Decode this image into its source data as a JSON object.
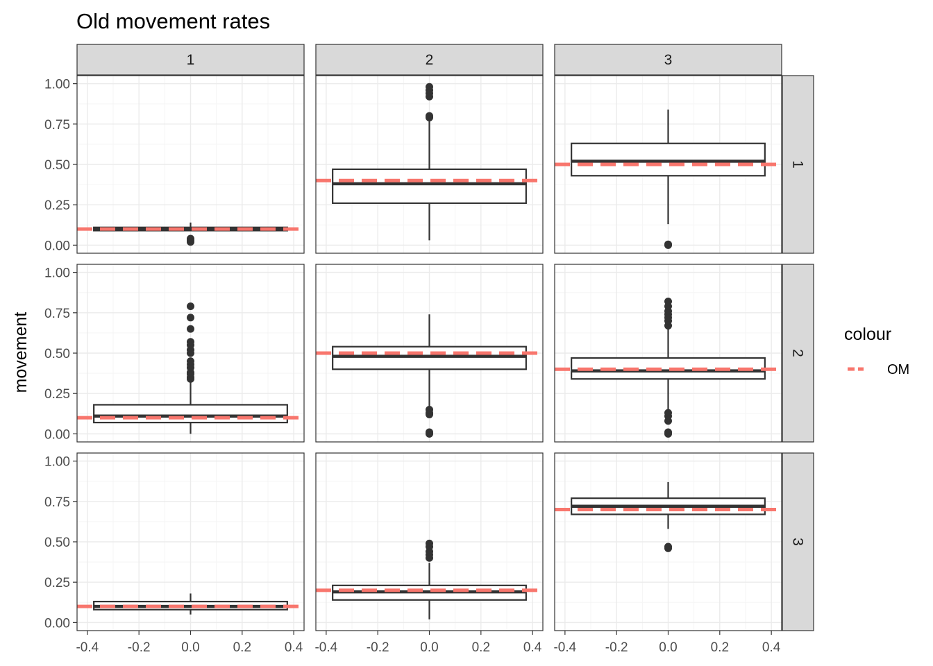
{
  "chart_data": {
    "type": "boxplot",
    "title": "Old movement rates",
    "ylabel": "movement",
    "xlabel": "",
    "facet_cols": [
      "1",
      "2",
      "3"
    ],
    "facet_rows": [
      "1",
      "2",
      "3"
    ],
    "xlim": [
      -0.4,
      0.4
    ],
    "ylim": [
      0,
      1
    ],
    "x_ticks": [
      "-0.4",
      "-0.2",
      "0.0",
      "0.2",
      "0.4"
    ],
    "x_tick_values": [
      -0.4,
      -0.2,
      0.0,
      0.2,
      0.4
    ],
    "y_ticks": [
      "0.00",
      "0.25",
      "0.50",
      "0.75",
      "1.00"
    ],
    "y_tick_values": [
      0,
      0.25,
      0.5,
      0.75,
      1.0
    ],
    "grid": true,
    "legend": {
      "title": "colour",
      "position": "right",
      "entries": [
        {
          "label": "OM",
          "color": "#F8766D",
          "linetype": "dashed"
        }
      ]
    },
    "colors": {
      "box": "#333333",
      "om_line": "#F8766D",
      "strip_fill": "#D9D9D9",
      "grid_major": "#EBEBEB",
      "grid_minor": "#F5F5F5"
    },
    "panels": [
      {
        "row": "1",
        "col": "1",
        "box": {
          "whisker_low": 0.09,
          "q1": 0.09,
          "median": 0.1,
          "q3": 0.11,
          "whisker_high": 0.14,
          "xmin": -0.375,
          "xmax": 0.375
        },
        "outliers": [
          0.02,
          0.03,
          0.04
        ],
        "om": 0.1
      },
      {
        "row": "1",
        "col": "2",
        "box": {
          "whisker_low": 0.03,
          "q1": 0.26,
          "median": 0.38,
          "q3": 0.47,
          "whisker_high": 0.77,
          "xmin": -0.375,
          "xmax": 0.375
        },
        "outliers": [
          0.79,
          0.8,
          0.92,
          0.94,
          0.96,
          0.98
        ],
        "om": 0.4
      },
      {
        "row": "1",
        "col": "3",
        "box": {
          "whisker_low": 0.13,
          "q1": 0.43,
          "median": 0.52,
          "q3": 0.63,
          "whisker_high": 0.84,
          "xmin": -0.375,
          "xmax": 0.375
        },
        "outliers": [
          0.0,
          0.005
        ],
        "om": 0.5
      },
      {
        "row": "2",
        "col": "1",
        "box": {
          "whisker_low": 0.0,
          "q1": 0.07,
          "median": 0.11,
          "q3": 0.18,
          "whisker_high": 0.33,
          "xmin": -0.375,
          "xmax": 0.375
        },
        "outliers": [
          0.34,
          0.35,
          0.37,
          0.38,
          0.41,
          0.43,
          0.45,
          0.5,
          0.52,
          0.55,
          0.57,
          0.65,
          0.72,
          0.79
        ],
        "om": 0.1
      },
      {
        "row": "2",
        "col": "2",
        "box": {
          "whisker_low": 0.17,
          "q1": 0.4,
          "median": 0.48,
          "q3": 0.54,
          "whisker_high": 0.74,
          "xmin": -0.375,
          "xmax": 0.375
        },
        "outliers": [
          0.0,
          0.01,
          0.12,
          0.13,
          0.15
        ],
        "om": 0.5
      },
      {
        "row": "2",
        "col": "3",
        "box": {
          "whisker_low": 0.15,
          "q1": 0.34,
          "median": 0.39,
          "q3": 0.47,
          "whisker_high": 0.65,
          "xmin": -0.375,
          "xmax": 0.375
        },
        "outliers": [
          0.0,
          0.01,
          0.08,
          0.11,
          0.13,
          0.67,
          0.7,
          0.72,
          0.74,
          0.76,
          0.79,
          0.82
        ],
        "om": 0.4
      },
      {
        "row": "3",
        "col": "1",
        "box": {
          "whisker_low": 0.05,
          "q1": 0.08,
          "median": 0.1,
          "q3": 0.13,
          "whisker_high": 0.18,
          "xmin": -0.375,
          "xmax": 0.375
        },
        "outliers": [],
        "om": 0.1
      },
      {
        "row": "3",
        "col": "2",
        "box": {
          "whisker_low": 0.02,
          "q1": 0.14,
          "median": 0.19,
          "q3": 0.23,
          "whisker_high": 0.37,
          "xmin": -0.375,
          "xmax": 0.375
        },
        "outliers": [
          0.4,
          0.42,
          0.44,
          0.47,
          0.49
        ],
        "om": 0.2
      },
      {
        "row": "3",
        "col": "3",
        "box": {
          "whisker_low": 0.58,
          "q1": 0.67,
          "median": 0.72,
          "q3": 0.77,
          "whisker_high": 0.87,
          "xmin": -0.375,
          "xmax": 0.375
        },
        "outliers": [
          0.46,
          0.47
        ],
        "om": 0.7
      }
    ]
  }
}
